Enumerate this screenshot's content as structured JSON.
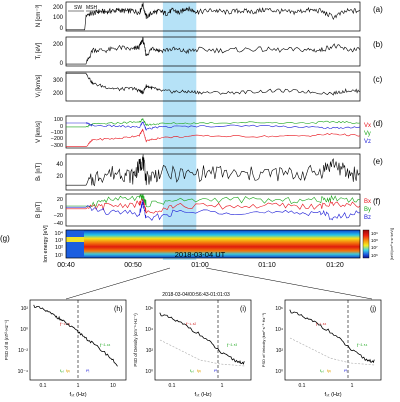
{
  "chart_data": [
    {
      "panel": "a",
      "type": "line",
      "ylabel": "N [cm⁻³]",
      "yticks": [
        "200",
        "100",
        "0"
      ],
      "ylim": [
        0,
        250
      ],
      "annotations": [
        "SW",
        "MSH"
      ],
      "series": [
        {
          "x": [
            0,
            2.8,
            3,
            4,
            5,
            6,
            7,
            8,
            9,
            10,
            11,
            11.5,
            12,
            13,
            14,
            15,
            16,
            17,
            18,
            19,
            20,
            22,
            24,
            26,
            28,
            30,
            32,
            34,
            36,
            38,
            40,
            42,
            44
          ],
          "values": [
            10,
            10,
            140,
            150,
            170,
            165,
            175,
            180,
            170,
            175,
            160,
            230,
            120,
            160,
            170,
            150,
            180,
            155,
            200,
            175,
            165,
            180,
            160,
            175,
            165,
            185,
            170,
            160,
            180,
            175,
            120,
            170,
            175
          ]
        }
      ]
    },
    {
      "panel": "b",
      "type": "line",
      "ylabel": "Tᵢ [eV]",
      "yticks": [
        "200",
        "0"
      ],
      "ylim": [
        0,
        300
      ],
      "series": [
        {
          "x": [
            0,
            3,
            4,
            6,
            8,
            10,
            11,
            11.5,
            12,
            13,
            14,
            16,
            18,
            20,
            24,
            28,
            32,
            36,
            38,
            40,
            42,
            44
          ],
          "values": [
            20,
            20,
            170,
            160,
            190,
            170,
            200,
            280,
            110,
            190,
            160,
            175,
            150,
            170,
            160,
            175,
            165,
            170,
            160,
            210,
            170,
            165
          ]
        }
      ]
    },
    {
      "panel": "c",
      "type": "line",
      "ylabel": "Vᵢ [km/s]",
      "yticks": [
        "300",
        "200"
      ],
      "ylim": [
        150,
        400
      ],
      "series": [
        {
          "x": [
            0,
            3,
            4,
            6,
            8,
            10,
            11,
            11.5,
            12,
            13,
            14,
            16,
            18,
            20,
            24,
            28,
            32,
            36,
            40,
            42,
            44
          ],
          "values": [
            390,
            390,
            300,
            270,
            250,
            260,
            240,
            220,
            280,
            260,
            240,
            230,
            230,
            225,
            220,
            230,
            240,
            230,
            215,
            240,
            235
          ]
        }
      ]
    },
    {
      "panel": "d",
      "type": "line",
      "ylabel": "V [km/s]",
      "yticks": [
        "100",
        "0",
        "−100",
        "−200",
        "−300"
      ],
      "ylim": [
        -350,
        150
      ],
      "legend": [
        "Vx",
        "Vy",
        "Vz"
      ],
      "colors": [
        "#e8121b",
        "#1aa51a",
        "#1a1ad6"
      ],
      "series": [
        {
          "name": "Vx",
          "x": [
            0,
            3,
            4,
            8,
            11,
            11.5,
            12,
            14,
            20,
            28,
            36,
            40,
            44
          ],
          "values": [
            -330,
            -330,
            -220,
            -200,
            -150,
            -60,
            -240,
            -190,
            -160,
            -170,
            -160,
            -130,
            -160
          ]
        },
        {
          "name": "Vy",
          "x": [
            0,
            3,
            4,
            8,
            11,
            11.5,
            12,
            14,
            20,
            28,
            36,
            40,
            44
          ],
          "values": [
            -20,
            -20,
            20,
            40,
            60,
            100,
            10,
            30,
            40,
            50,
            40,
            60,
            40
          ]
        },
        {
          "name": "Vz",
          "x": [
            0,
            3,
            4,
            8,
            11,
            11.5,
            12,
            14,
            20,
            28,
            36,
            40,
            44
          ],
          "values": [
            40,
            40,
            0,
            -10,
            -30,
            60,
            -60,
            -20,
            -10,
            0,
            -20,
            -40,
            -20
          ]
        }
      ]
    },
    {
      "panel": "e",
      "type": "line",
      "ylabel": "Bₜ [nT]",
      "yticks": [
        "40",
        "20"
      ],
      "ylim": [
        0,
        60
      ],
      "series": [
        {
          "x": [
            0,
            3,
            5,
            8,
            10,
            11,
            11.5,
            12,
            14,
            18,
            22,
            26,
            30,
            34,
            38,
            40,
            42,
            44
          ],
          "values": [
            8,
            8,
            25,
            30,
            22,
            40,
            50,
            20,
            28,
            25,
            30,
            24,
            28,
            26,
            30,
            45,
            28,
            26
          ]
        }
      ]
    },
    {
      "panel": "f",
      "type": "line",
      "ylabel": "B [nT]",
      "yticks": [
        "20",
        "0",
        "−20",
        "−40"
      ],
      "ylim": [
        -45,
        35
      ],
      "legend": [
        "Bx",
        "By",
        "Bz"
      ],
      "colors": [
        "#e8121b",
        "#1aa51a",
        "#1a1ad6"
      ],
      "series": [
        {
          "name": "Bx",
          "x": [
            0,
            3,
            6,
            11,
            11.5,
            12,
            16,
            24,
            32,
            38,
            40,
            44
          ],
          "values": [
            -2,
            -2,
            5,
            10,
            20,
            -10,
            5,
            4,
            6,
            3,
            12,
            5
          ]
        },
        {
          "name": "By",
          "x": [
            0,
            3,
            6,
            11,
            11.5,
            12,
            16,
            24,
            32,
            38,
            40,
            44
          ],
          "values": [
            5,
            5,
            20,
            25,
            30,
            10,
            18,
            22,
            18,
            20,
            25,
            20
          ]
        },
        {
          "name": "Bz",
          "x": [
            0,
            3,
            6,
            11,
            11.5,
            12,
            16,
            24,
            32,
            38,
            40,
            44
          ],
          "values": [
            2,
            2,
            -10,
            -15,
            15,
            -30,
            -12,
            -8,
            -14,
            -10,
            -25,
            -12
          ]
        }
      ]
    },
    {
      "panel": "g",
      "type": "heatmap",
      "ylabel": "Ion energy [eV]",
      "yticks": [
        "10⁴",
        "10³",
        "10²",
        "10¹"
      ],
      "colorbar_label": "[keV/(cm²·s·sr·keV)]",
      "colorbar_ticks": [
        "10⁹",
        "10⁸",
        "10⁷",
        "10⁶"
      ]
    },
    {
      "xaxis": {
        "xlabel": "2018-03-04 UT",
        "ticks": [
          "00:40",
          "00:50",
          "01:00",
          "01:10",
          "01:20"
        ],
        "xlim_minutes": [
          0,
          44
        ],
        "highlight_minutes": [
          14.5,
          19.5
        ]
      }
    },
    {
      "panel": "h",
      "type": "line",
      "xlabel": "fₛₜ (Hz)",
      "ylabel": "PSD of B (nT²·Hz⁻¹)",
      "xticks": [
        "0.1",
        "1",
        "10"
      ],
      "yticks": [
        "10²",
        "10⁰",
        "10⁻²",
        "10⁻⁴"
      ],
      "log_x": true,
      "log_y": true,
      "annotations": [
        "f⁻¹·⁴¹",
        "f⁻²·⁴⁶",
        "fₚᵢ",
        "fρᵢ",
        "fᵈᵢ"
      ],
      "vline_hz": 0.3,
      "series": [
        {
          "x": [
            0.05,
            0.1,
            0.2,
            0.3,
            0.5,
            1,
            2,
            5,
            10
          ],
          "values": [
            100,
            40,
            12,
            5,
            1.5,
            0.3,
            0.05,
            0.005,
            0.0005
          ]
        }
      ]
    },
    {
      "panel": "i",
      "type": "line",
      "title": "2018-03-04/00:56:43-01:01:03",
      "xlabel": "fₛₜ (Hz)",
      "ylabel": "PSD of Density (cm⁻⁶·Hz⁻¹)",
      "xticks": [
        "0.1",
        "1"
      ],
      "yticks": [
        "10⁶",
        "10⁴",
        "10²",
        "10⁰"
      ],
      "log_x": true,
      "log_y": true,
      "annotations": [
        "f⁻¹·⁶²",
        "f⁻²·⁵³",
        "fₚᵢ",
        "fρᵢ",
        "fᵈᵢ"
      ],
      "vline_hz": 0.5,
      "series": [
        {
          "x": [
            0.05,
            0.1,
            0.2,
            0.5,
            1,
            2,
            3
          ],
          "values": [
            300000,
            100000,
            30000,
            3000,
            300,
            80,
            60
          ]
        }
      ]
    },
    {
      "panel": "j",
      "type": "line",
      "xlabel": "fₛₜ (Hz)",
      "ylabel": "PSD of Velocity (km²·s⁻²·Hz⁻¹)",
      "xticks": [
        "0.1",
        "1"
      ],
      "yticks": [
        "10⁶",
        "10⁴",
        "10²",
        "10⁰"
      ],
      "log_x": true,
      "log_y": true,
      "annotations": [
        "f⁻¹·⁶⁶",
        "f⁻²·⁵⁴",
        "fₚᵢ",
        "fρᵢ",
        "fᵈᵢ"
      ],
      "vline_hz": 0.5,
      "series": [
        {
          "x": [
            0.05,
            0.1,
            0.2,
            0.5,
            1,
            2,
            3
          ],
          "values": [
            500000,
            150000,
            50000,
            5000,
            500,
            100,
            80
          ]
        }
      ]
    }
  ]
}
